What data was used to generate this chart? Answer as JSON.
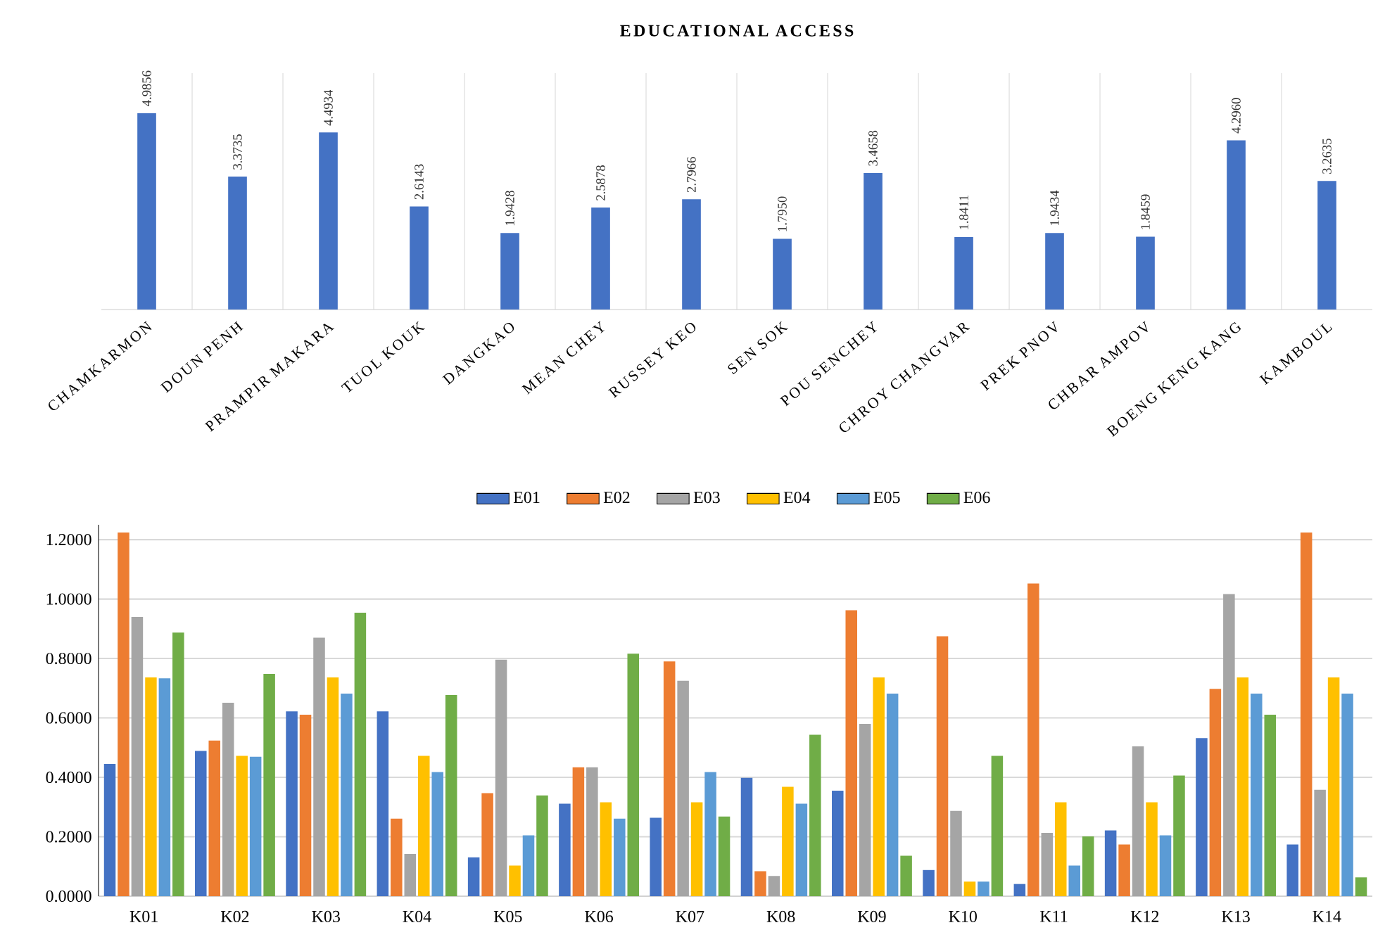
{
  "chart_data": [
    {
      "type": "bar",
      "title": "EDUCATIONAL ACCESS",
      "categories": [
        "CHAMKARMON",
        "DOUN PENH",
        "PRAMPIR MAKARA",
        "TUOL KOUK",
        "DANGKAO",
        "MEAN CHEY",
        "RUSSEY KEO",
        "SEN SOK",
        "POU SENCHEY",
        "CHROY CHANGVAR",
        "PREK PNOV",
        "CHBAR AMPOV",
        "BOENG KENG KANG",
        "KAMBOUL"
      ],
      "values": [
        4.9856,
        3.3735,
        4.4934,
        2.6143,
        1.9428,
        2.5878,
        2.7966,
        1.795,
        3.4658,
        1.8411,
        1.9434,
        1.8459,
        4.296,
        3.2635
      ],
      "value_labels": [
        "4.9856",
        "3.3735",
        "4.4934",
        "2.6143",
        "1.9428",
        "2.5878",
        "2.7966",
        "1.7950",
        "3.4658",
        "1.8411",
        "1.9434",
        "1.8459",
        "4.2960",
        "3.2635"
      ],
      "color": "#4472c4",
      "ylim": [
        0,
        6
      ],
      "grid": "x",
      "tick_labels": "x"
    },
    {
      "type": "bar",
      "categories": [
        "K01",
        "K02",
        "K03",
        "K04",
        "K05",
        "K06",
        "K07",
        "K08",
        "K09",
        "K10",
        "K11",
        "K12",
        "K13",
        "K14"
      ],
      "series": [
        {
          "name": "E01",
          "color": "#4472c4",
          "values": [
            0.445,
            0.489,
            0.622,
            0.622,
            0.131,
            0.311,
            0.264,
            0.398,
            0.355,
            0.088,
            0.041,
            0.221,
            0.532,
            0.174
          ]
        },
        {
          "name": "E02",
          "color": "#ed7d31",
          "values": [
            1.224,
            0.524,
            0.611,
            0.261,
            0.347,
            0.434,
            0.79,
            0.084,
            0.962,
            0.875,
            1.052,
            0.174,
            0.698,
            1.224
          ]
        },
        {
          "name": "E03",
          "color": "#a5a5a5",
          "values": [
            0.94,
            0.651,
            0.87,
            0.142,
            0.796,
            0.434,
            0.725,
            0.068,
            0.58,
            0.287,
            0.213,
            0.504,
            1.017,
            0.358
          ]
        },
        {
          "name": "E04",
          "color": "#ffc000",
          "values": [
            0.736,
            0.472,
            0.736,
            0.472,
            0.103,
            0.316,
            0.316,
            0.368,
            0.736,
            0.049,
            0.316,
            0.316,
            0.736,
            0.736
          ]
        },
        {
          "name": "E05",
          "color": "#5b9bd5",
          "values": [
            0.733,
            0.469,
            0.682,
            0.418,
            0.205,
            0.261,
            0.418,
            0.311,
            0.682,
            0.049,
            0.103,
            0.205,
            0.682,
            0.682
          ]
        },
        {
          "name": "E06",
          "color": "#70ad47",
          "values": [
            0.887,
            0.748,
            0.954,
            0.677,
            0.339,
            0.816,
            0.268,
            0.543,
            0.136,
            0.472,
            0.201,
            0.406,
            0.611,
            0.063
          ]
        }
      ],
      "ylim": [
        0,
        1.25
      ],
      "yticks": [
        {
          "value": 0,
          "label": "0.0000"
        },
        {
          "value": 0.2,
          "label": "0.2000"
        },
        {
          "value": 0.4,
          "label": "0.4000"
        },
        {
          "value": 0.6,
          "label": "0.6000"
        },
        {
          "value": 0.8,
          "label": "0.8000"
        },
        {
          "value": 1.0,
          "label": "1.0000"
        },
        {
          "value": 1.2,
          "label": "1.2000"
        }
      ],
      "grid": "y",
      "legend": "top"
    }
  ]
}
